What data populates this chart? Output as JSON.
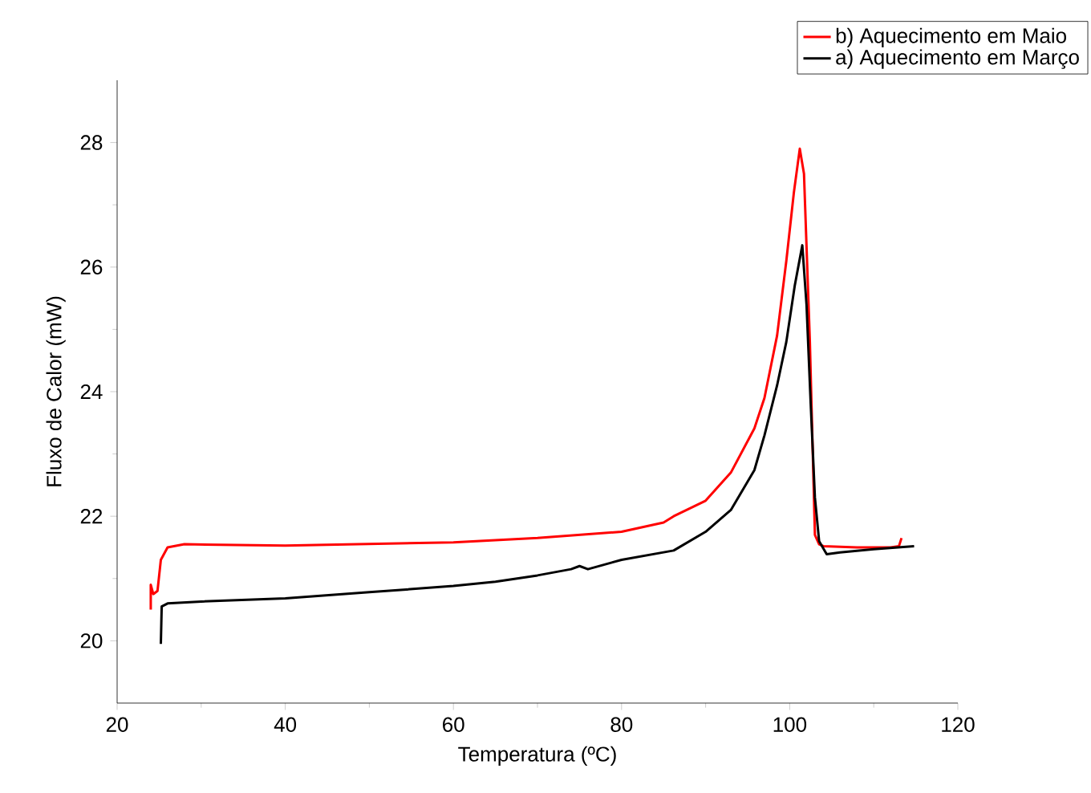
{
  "chart_data": {
    "type": "line",
    "xlabel": "Temperatura (ºC)",
    "ylabel": "Fluxo de Calor (mW)",
    "xlim": [
      20,
      120
    ],
    "xticks": [
      20,
      40,
      60,
      80,
      100,
      120
    ],
    "ylim": [
      19,
      29
    ],
    "yticks": [
      20,
      22,
      24,
      26,
      28
    ],
    "legend": "top right",
    "grid": false,
    "marker": "none",
    "line_style": "solid",
    "series": [
      {
        "name": "b) Aquecimento em Maio",
        "color": "#ff0000",
        "x": [
          24.0,
          24.0,
          24.3,
          24.8,
          25.2,
          26,
          28,
          40,
          60,
          70,
          80,
          85,
          86.2,
          90,
          93,
          95.8,
          97,
          98.5,
          99.6,
          100.5,
          101.2,
          101.7,
          102.4,
          103,
          103.5,
          104,
          108,
          112,
          113,
          113.3
        ],
        "values": [
          20.5,
          20.9,
          20.75,
          20.8,
          21.3,
          21.5,
          21.55,
          21.53,
          21.58,
          21.65,
          21.75,
          21.9,
          22.0,
          22.25,
          22.7,
          23.41,
          23.9,
          24.9,
          26.1,
          27.2,
          27.9,
          27.5,
          24.8,
          21.7,
          21.55,
          21.52,
          21.5,
          21.5,
          21.52,
          21.65
        ]
      },
      {
        "name": "a) Aquecimento em Março",
        "color": "#000000",
        "x": [
          25.2,
          25.3,
          26,
          30,
          40,
          50,
          60,
          65,
          70,
          74,
          75,
          76,
          80,
          86.2,
          90,
          93,
          95.8,
          97,
          98.5,
          99.6,
          100.6,
          101.5,
          102,
          102.5,
          103,
          103.5,
          104.4,
          106,
          110,
          114.8
        ],
        "values": [
          19.95,
          20.55,
          20.6,
          20.63,
          20.68,
          20.78,
          20.88,
          20.95,
          21.05,
          21.15,
          21.2,
          21.15,
          21.3,
          21.45,
          21.75,
          22.1,
          22.74,
          23.3,
          24.1,
          24.8,
          25.7,
          26.35,
          25.4,
          23.8,
          22.3,
          21.6,
          21.39,
          21.42,
          21.47,
          21.52
        ]
      }
    ]
  }
}
